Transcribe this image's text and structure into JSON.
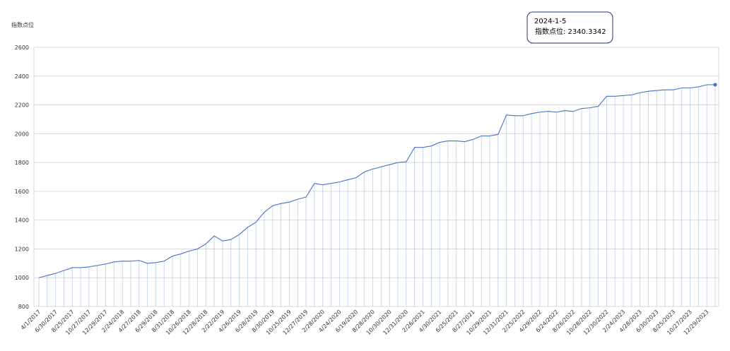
{
  "chart_data": {
    "type": "line",
    "y_axis_label": "指数点位",
    "categories": [
      "4/1/2017",
      null,
      "6/30/2017",
      null,
      "8/25/2017",
      null,
      "10/27/2017",
      null,
      "12/29/2017",
      null,
      "2/24/2018",
      null,
      "4/27/2018",
      null,
      "6/29/2018",
      null,
      "8/31/2018",
      null,
      "10/26/2018",
      null,
      "12/28/2018",
      null,
      "2/22/2019",
      null,
      "4/26/2019",
      null,
      "6/28/2019",
      null,
      "8/30/2019",
      null,
      "10/25/2019",
      null,
      "12/27/2019",
      null,
      "2/28/2020",
      null,
      "4/24/2020",
      null,
      "6/19/2020",
      null,
      "8/28/2020",
      null,
      "10/30/2020",
      null,
      "12/31/2020",
      null,
      "2/26/2021",
      null,
      "4/30/2021",
      null,
      "6/25/2021",
      null,
      "8/27/2021",
      null,
      "10/29/2021",
      null,
      "12/31/2021",
      null,
      "2/25/2022",
      null,
      "4/29/2022",
      null,
      "6/24/2022",
      null,
      "8/26/2022",
      null,
      "10/28/2022",
      null,
      "12/30/2022",
      null,
      "2/24/2023",
      null,
      "4/28/2023",
      null,
      "6/30/2023",
      null,
      "8/25/2023",
      null,
      "10/27/2023",
      null,
      "12/29/2023",
      null
    ],
    "series": [
      {
        "name": "指数点位",
        "color": "#4472c4",
        "values": [
          1000,
          1015,
          1030,
          1050,
          1070,
          1070,
          1075,
          1085,
          1095,
          1110,
          1115,
          1115,
          1120,
          1100,
          1105,
          1115,
          1150,
          1165,
          1185,
          1200,
          1235,
          1290,
          1255,
          1265,
          1300,
          1350,
          1385,
          1455,
          1500,
          1515,
          1525,
          1545,
          1560,
          1655,
          1645,
          1655,
          1665,
          1680,
          1695,
          1735,
          1755,
          1770,
          1785,
          1800,
          1805,
          1905,
          1905,
          1915,
          1940,
          1950,
          1950,
          1945,
          1960,
          1985,
          1985,
          1995,
          2130,
          2125,
          2125,
          2140,
          2150,
          2155,
          2150,
          2160,
          2155,
          2175,
          2180,
          2190,
          2260,
          2260,
          2265,
          2270,
          2285,
          2295,
          2300,
          2305,
          2305,
          2318,
          2318,
          2325,
          2340,
          2340.3342
        ]
      }
    ],
    "ylim": [
      800,
      2600
    ],
    "yticks": [
      800,
      1000,
      1200,
      1400,
      1600,
      1800,
      2000,
      2200,
      2400,
      2600
    ],
    "grid": true,
    "tooltip": {
      "date": "2024-1-5",
      "text": "指数点位: 2340.3342"
    }
  }
}
